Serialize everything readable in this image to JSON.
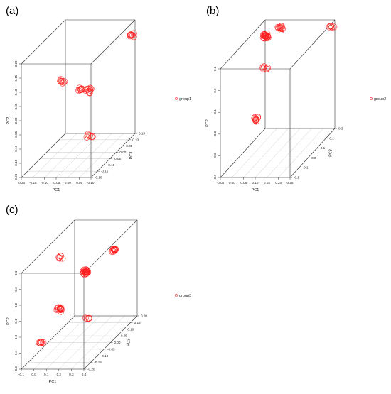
{
  "figure": {
    "accent": "#ff2020"
  },
  "chart_data": [
    {
      "type": "scatter",
      "panel": "(a)",
      "xlabel": "PC1",
      "ylabel": "PC2",
      "zlabel": "PC3",
      "legend": {
        "label": "group1",
        "placement": "right",
        "color": "#ff2020"
      },
      "x_ticks": [
        "-0.20",
        "-0.15",
        "-0.10",
        "-0.05",
        "0.00",
        "0.05",
        "0.10"
      ],
      "y_ticks": [
        "-0.20",
        "-0.15",
        "-0.10",
        "-0.05",
        "0.00",
        "0.05",
        "0.10",
        "0.15",
        "0.20"
      ],
      "z_ticks": [
        "-0.20",
        "-0.15",
        "-0.10",
        "-0.05",
        "0.00",
        "0.05",
        "0.10",
        "0.15"
      ],
      "xlim": [
        -0.2,
        0.1
      ],
      "ylim": [
        -0.2,
        0.2
      ],
      "zlim": [
        -0.2,
        0.15
      ],
      "grid": "floor",
      "clusters": [
        {
          "x": 0.1,
          "y": 0.16,
          "z": 0.12,
          "count": 8
        },
        {
          "x": -0.125,
          "y": 0.06,
          "z": -0.02,
          "count": 8
        },
        {
          "x": -0.03,
          "y": 0.04,
          "z": -0.04,
          "count": 9
        },
        {
          "x": 0.01,
          "y": 0.04,
          "z": -0.05,
          "count": 10
        },
        {
          "x": 0.06,
          "y": -0.08,
          "z": -0.14,
          "count": 8
        }
      ]
    },
    {
      "type": "scatter",
      "panel": "(b)",
      "xlabel": "PC1",
      "ylabel": "PC2",
      "zlabel": "PC3",
      "legend": {
        "label": "group2",
        "placement": "right",
        "color": "#ff2020"
      },
      "x_ticks": [
        "-0.05",
        "0.00",
        "0.05",
        "0.10",
        "0.15",
        "0.20",
        "0.25"
      ],
      "y_ticks": [
        "-0.4",
        "-0.3",
        "-0.2",
        "-0.1",
        "0.0",
        "0.1"
      ],
      "z_ticks": [
        "-0.2",
        "-0.1",
        "0.0",
        "0.1",
        "0.2",
        "0.3"
      ],
      "xlim": [
        -0.05,
        0.25
      ],
      "ylim": [
        -0.4,
        0.1
      ],
      "zlim": [
        -0.2,
        0.3
      ],
      "grid": "floor",
      "clusters": [
        {
          "x": 0.0,
          "y": 0.08,
          "z": 0.18,
          "count": 30
        },
        {
          "x": 0.04,
          "y": 0.09,
          "z": 0.24,
          "count": 12
        },
        {
          "x": 0.03,
          "y": -0.03,
          "z": 0.1,
          "count": 6
        },
        {
          "x": 0.03,
          "y": -0.22,
          "z": 0.0,
          "count": 10
        },
        {
          "x": 0.24,
          "y": 0.08,
          "z": 0.28,
          "count": 6
        }
      ]
    },
    {
      "type": "scatter",
      "panel": "(c)",
      "xlabel": "PC1",
      "ylabel": "PC2",
      "zlabel": "PC3",
      "legend": {
        "label": "group3",
        "placement": "right",
        "color": "#ff2020"
      },
      "x_ticks": [
        "-0.1",
        "0.0",
        "0.1",
        "0.2",
        "0.3",
        "0.4"
      ],
      "y_ticks": [
        "-0.2",
        "-0.1",
        "0.0",
        "0.1",
        "0.2",
        "0.3",
        "0.4"
      ],
      "z_ticks": [
        "-0.20",
        "-0.15",
        "-0.10",
        "-0.05",
        "0.00",
        "0.05",
        "0.10",
        "0.15",
        "0.20"
      ],
      "xlim": [
        -0.1,
        0.4
      ],
      "ylim": [
        -0.2,
        0.4
      ],
      "zlim": [
        -0.2,
        0.2
      ],
      "grid": "floor",
      "clusters": [
        {
          "x": -0.05,
          "y": 0.3,
          "z": 0.05,
          "count": 6
        },
        {
          "x": 0.15,
          "y": 0.2,
          "z": 0.05,
          "count": 26
        },
        {
          "x": 0.05,
          "y": 0.05,
          "z": -0.05,
          "count": 16
        },
        {
          "x": -0.05,
          "y": -0.12,
          "z": -0.1,
          "count": 8
        },
        {
          "x": 0.3,
          "y": 0.28,
          "z": 0.12,
          "count": 14
        },
        {
          "x": 0.35,
          "y": 0.05,
          "z": -0.12,
          "count": 5
        }
      ]
    }
  ]
}
